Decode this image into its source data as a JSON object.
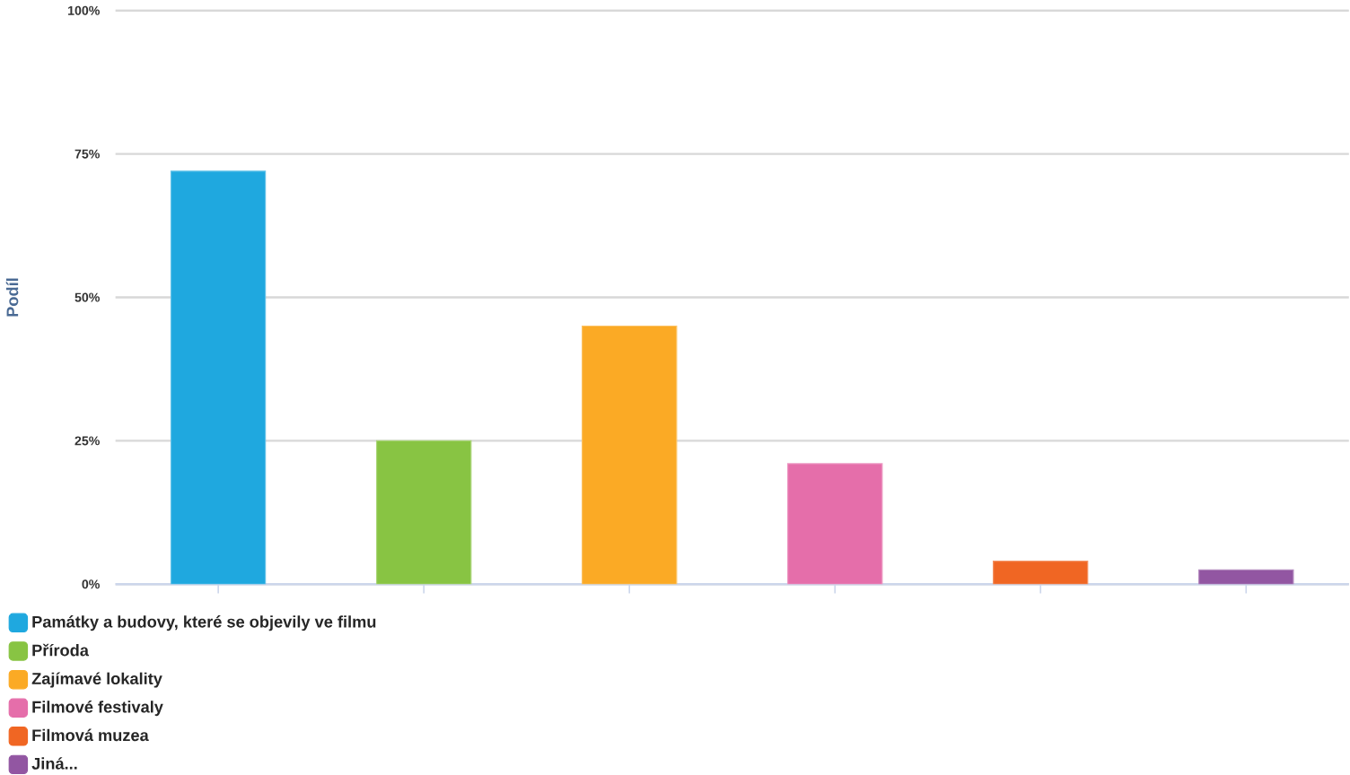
{
  "chart_data": {
    "type": "bar",
    "ylabel": "Podíl",
    "categories": [
      null,
      null,
      null,
      null,
      null,
      null
    ],
    "series": [
      {
        "name": "Památky a budovy, které se objevily ve filmu",
        "color": "#1fa8df",
        "values": [
          72,
          null,
          null,
          null,
          null,
          null
        ]
      },
      {
        "name": "Příroda",
        "color": "#88c443",
        "values": [
          null,
          25,
          null,
          null,
          null,
          null
        ]
      },
      {
        "name": "Zajímavé lokality",
        "color": "#fbaa25",
        "values": [
          null,
          null,
          45,
          null,
          null,
          null
        ]
      },
      {
        "name": "Filmové festivaly",
        "color": "#e56eaa",
        "values": [
          null,
          null,
          null,
          21,
          null,
          null
        ]
      },
      {
        "name": "Filmová muzea",
        "color": "#f06623",
        "values": [
          null,
          null,
          null,
          null,
          4,
          null
        ]
      },
      {
        "name": "Jiná...",
        "color": "#9256a2",
        "values": [
          null,
          null,
          null,
          null,
          null,
          2.5
        ]
      }
    ],
    "ylim": [
      0,
      100
    ],
    "yticks": [
      {
        "value": 0,
        "label": "0%"
      },
      {
        "value": 25,
        "label": "25%"
      },
      {
        "value": 50,
        "label": "50%"
      },
      {
        "value": 75,
        "label": "75%"
      },
      {
        "value": 100,
        "label": "100%"
      }
    ],
    "grid": "y",
    "legend": "bottom",
    "tick_labels": "y"
  }
}
